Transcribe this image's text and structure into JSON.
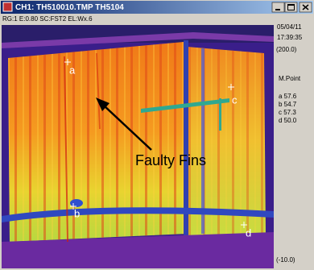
{
  "window": {
    "title": "CH1: TH510010.TMP TH5104"
  },
  "header": {
    "info": "RG:1 E:0.80 SC:FST2 EL:Wx.6",
    "date": "05/04/11",
    "time": "17:39:35"
  },
  "scale": {
    "max": "(200.0)",
    "min": "(-10.0)"
  },
  "panel": {
    "heading": "M.Point",
    "readings": [
      "a 57.6",
      "b 54.7",
      "c 57.3",
      "d 50.0"
    ]
  },
  "image": {
    "points": [
      "a",
      "b",
      "c",
      "d"
    ],
    "annotation": "Faulty Fins"
  }
}
